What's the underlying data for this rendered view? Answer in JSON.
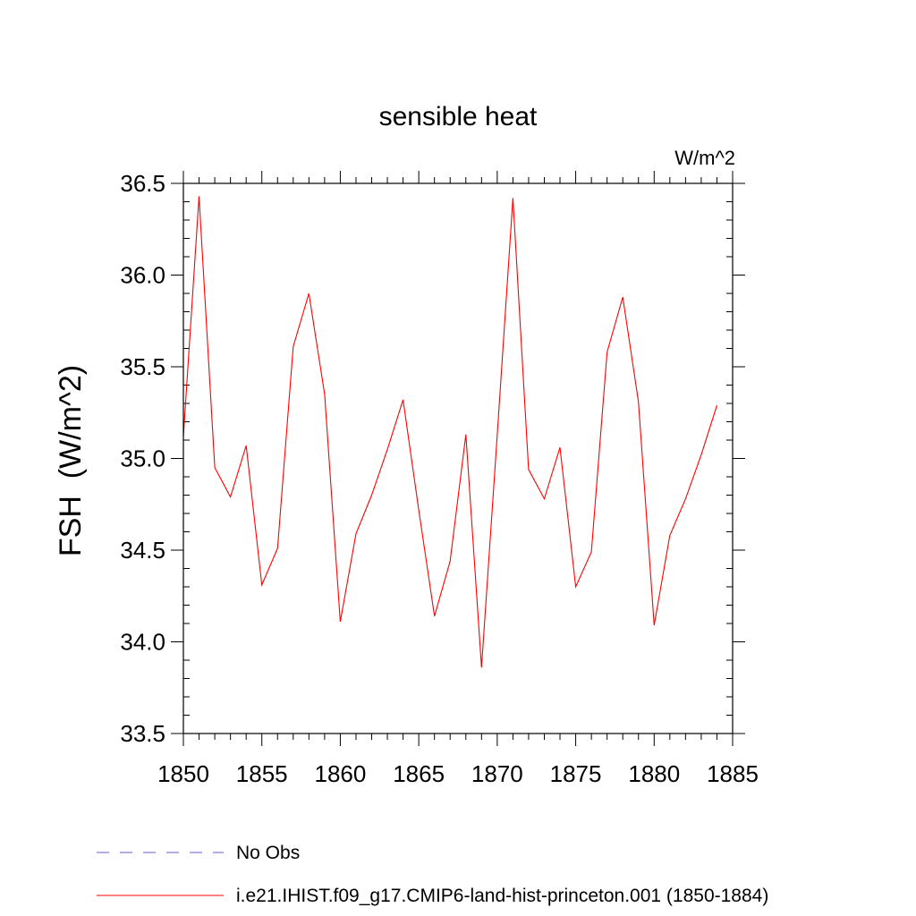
{
  "chart_data": {
    "type": "line",
    "title": "sensible heat",
    "units": "W/m^2",
    "ylabel": "FSH  (W/m^2)",
    "xlabel": "",
    "xlim": [
      1850,
      1885
    ],
    "ylim": [
      33.5,
      36.5
    ],
    "xticks": [
      1850,
      1855,
      1860,
      1865,
      1870,
      1875,
      1880,
      1885
    ],
    "yticks": [
      33.5,
      34.0,
      34.5,
      35.0,
      35.5,
      36.0,
      36.5
    ],
    "ytick_labels": [
      "33.5",
      "34.0",
      "34.5",
      "35.0",
      "35.5",
      "36.0",
      "36.5"
    ],
    "grid": false,
    "legend_position": "bottom-left",
    "series": [
      {
        "name": "i.e21.IHIST.f09_g17.CMIP6-land-hist-princeton.001 (1850-1884)",
        "color": "#ff0000",
        "style": "solid",
        "x": [
          1850,
          1851,
          1852,
          1853,
          1854,
          1855,
          1856,
          1857,
          1858,
          1859,
          1860,
          1861,
          1862,
          1863,
          1864,
          1865,
          1866,
          1867,
          1868,
          1869,
          1870,
          1871,
          1872,
          1873,
          1874,
          1875,
          1876,
          1877,
          1878,
          1879,
          1880,
          1881,
          1882,
          1883,
          1884
        ],
        "values": [
          35.12,
          36.43,
          34.95,
          34.79,
          35.07,
          34.31,
          34.51,
          35.61,
          35.9,
          35.35,
          34.11,
          34.59,
          34.8,
          35.05,
          35.32,
          34.72,
          34.14,
          34.44,
          35.13,
          33.86,
          35.13,
          36.42,
          34.94,
          34.78,
          35.06,
          34.3,
          34.49,
          35.58,
          35.88,
          35.31,
          34.09,
          34.58,
          34.78,
          35.02,
          35.29
        ]
      }
    ],
    "legend": [
      {
        "label": "No Obs",
        "color": "#6a5acd",
        "style": "dashed"
      },
      {
        "label": "i.e21.IHIST.f09_g17.CMIP6-land-hist-princeton.001 (1850-1884)",
        "color": "#ff0000",
        "style": "solid"
      }
    ]
  }
}
